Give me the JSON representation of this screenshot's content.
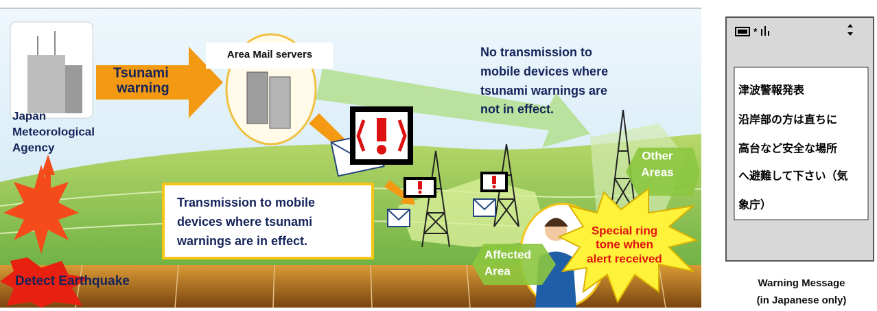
{
  "source": {
    "label": [
      "Japan",
      "Meteorological",
      "Agency"
    ]
  },
  "warning_arrow": {
    "label": [
      "Tsunami",
      "warning"
    ]
  },
  "server": {
    "label": "Area Mail servers"
  },
  "no_transmission": {
    "label": [
      "No transmission to",
      "mobile devices where",
      "tsunami warnings are",
      "not in effect."
    ]
  },
  "other_areas": {
    "label": [
      "Other",
      "Areas"
    ]
  },
  "transmission": {
    "label": [
      "Transmission to mobile",
      "devices where tsunami",
      "warnings are in effect."
    ]
  },
  "affected_area": {
    "label": [
      "Affected",
      "Area"
    ]
  },
  "ring_tone": {
    "label": [
      "Special ring",
      "tone when",
      "alert received"
    ]
  },
  "earthquake": {
    "label": "Detect Earthquake"
  },
  "phone": {
    "message": [
      "津波警報発表",
      "沿岸部の方は直ちに",
      "高台など安全な場所",
      "へ避難して下さい（気",
      "象庁）"
    ],
    "caption": [
      "Warning Message",
      "(in Japanese only)"
    ]
  }
}
